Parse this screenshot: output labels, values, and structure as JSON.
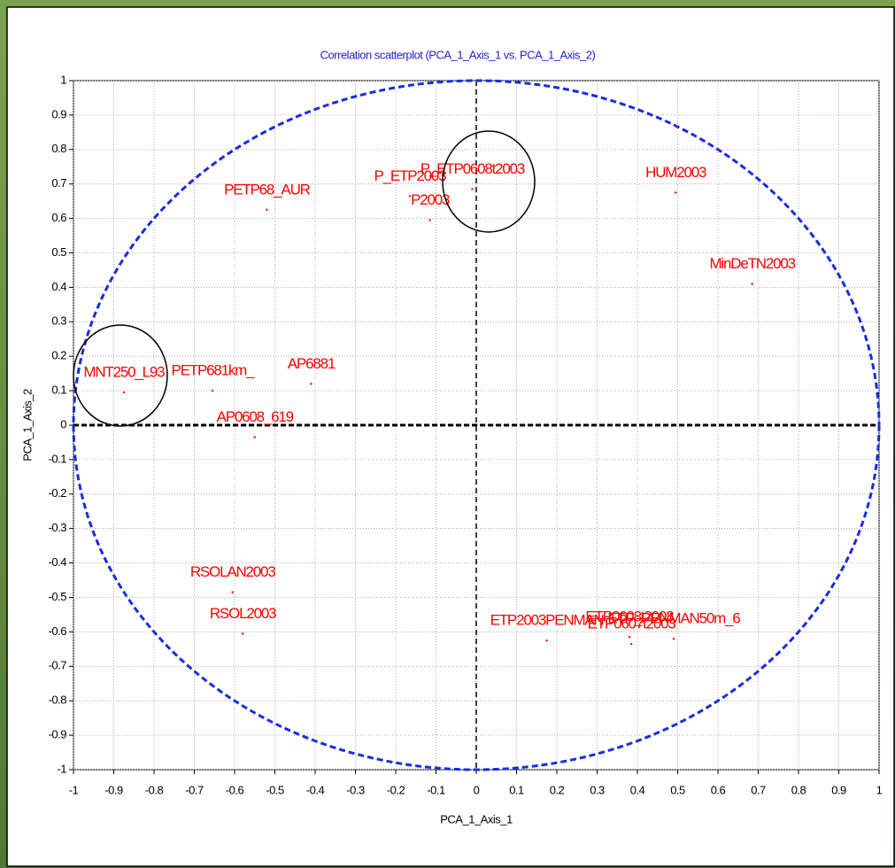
{
  "chart_data": {
    "type": "scatter",
    "title": "Correlation scatterplot (PCA_1_Axis_1 vs. PCA_1_Axis_2)",
    "x_label": "PCA_1_Axis_1",
    "y_label": "PCA_1_Axis_2",
    "labels": [
      "MNT250_L93",
      "PETP681km_",
      "AP6881",
      "AP0608_619",
      "PETP68_AUR",
      "P_ETP2003",
      "P2003",
      "P_ETP0608t2003",
      "HUM2003",
      "MinDeTN2003",
      "RSOLAN2003",
      "RSOL2003",
      "ETP2003PENMAN",
      "ETP0608t2003",
      "ETP0607t2003",
      "ETP_PENMAN50m_6"
    ],
    "x": [
      -0.875,
      -0.655,
      -0.41,
      -0.55,
      -0.52,
      -0.165,
      -0.115,
      -0.01,
      0.495,
      0.685,
      -0.605,
      -0.58,
      0.175,
      0.38,
      0.385,
      0.49
    ],
    "values": [
      0.095,
      0.1,
      0.12,
      -0.035,
      0.625,
      0.665,
      0.595,
      0.685,
      0.675,
      0.41,
      -0.485,
      -0.605,
      -0.625,
      -0.615,
      -0.635,
      -0.62
    ],
    "color": "#ff0000",
    "xlim": [
      -1,
      1
    ],
    "ylim": [
      -1,
      1
    ],
    "xticks": [
      -1,
      -0.9,
      -0.8,
      -0.7,
      -0.6,
      -0.5,
      -0.4,
      -0.3,
      -0.2,
      -0.1,
      0,
      0.1,
      0.2,
      0.3,
      0.4,
      0.5,
      0.6,
      0.7,
      0.8,
      0.9,
      1
    ],
    "yticks": [
      -1,
      -0.9,
      -0.8,
      -0.7,
      -0.6,
      -0.5,
      -0.4,
      -0.3,
      -0.2,
      -0.1,
      0,
      0.1,
      0.2,
      0.3,
      0.4,
      0.5,
      0.6,
      0.7,
      0.8,
      0.9,
      1
    ],
    "grid": true
  }
}
